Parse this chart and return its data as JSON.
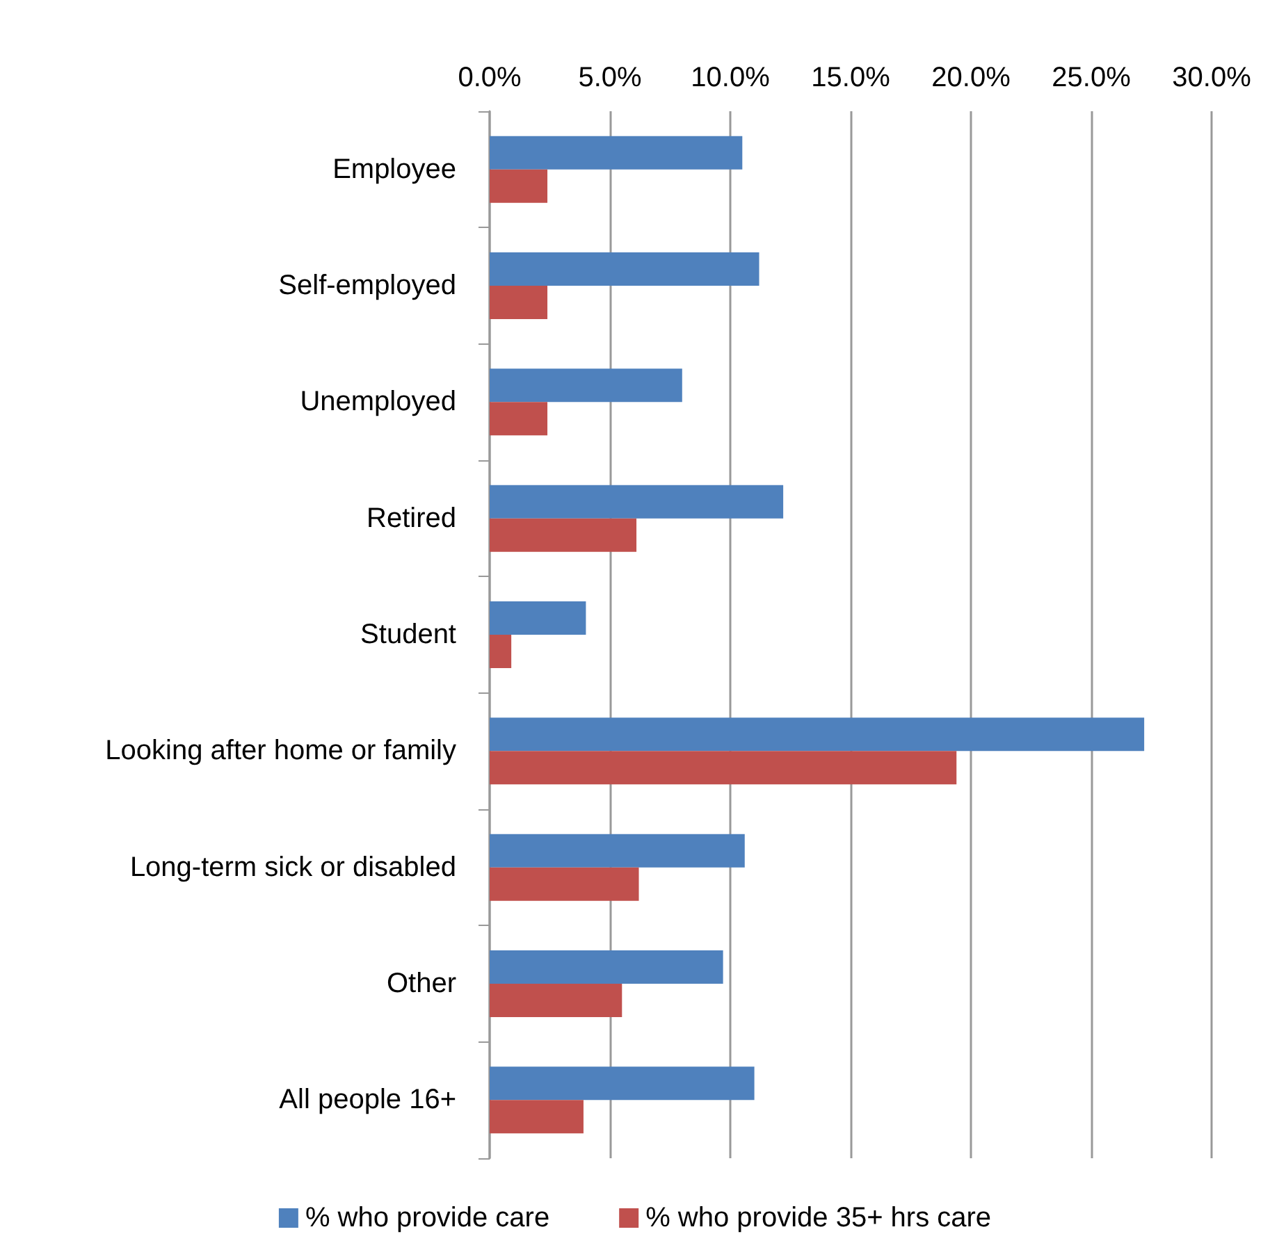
{
  "chart_data": {
    "type": "bar",
    "orientation": "horizontal",
    "categories": [
      "Employee",
      "Self-employed",
      "Unemployed",
      "Retired",
      "Student",
      "Looking after home or family",
      "Long-term sick or disabled",
      "Other",
      "All people 16+"
    ],
    "series": [
      {
        "name": "% who provide care",
        "color": "#4f81bd",
        "values": [
          10.5,
          11.2,
          8.0,
          12.2,
          4.0,
          27.2,
          10.6,
          9.7,
          11.0
        ]
      },
      {
        "name": "% who provide 35+ hrs care",
        "color": "#c0504d",
        "values": [
          2.4,
          2.4,
          2.4,
          6.1,
          0.9,
          19.4,
          6.2,
          5.5,
          3.9
        ]
      }
    ],
    "xlim": [
      0,
      30
    ],
    "xticks": [
      {
        "value": 0,
        "label": "0.0%"
      },
      {
        "value": 5,
        "label": "5.0%"
      },
      {
        "value": 10,
        "label": "10.0%"
      },
      {
        "value": 15,
        "label": "15.0%"
      },
      {
        "value": 20,
        "label": "20.0%"
      },
      {
        "value": 25,
        "label": "25.0%"
      },
      {
        "value": 30,
        "label": "30.0%"
      }
    ],
    "grid": "x",
    "legend": "bottom"
  }
}
